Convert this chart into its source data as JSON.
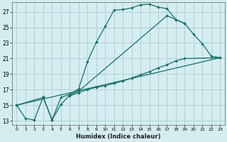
{
  "xlabel": "Humidex (Indice chaleur)",
  "background_color": "#d4edf0",
  "grid_color": "#b0d0d8",
  "line_color": "#1a6e68",
  "xlim": [
    -0.5,
    23.5
  ],
  "ylim": [
    12.5,
    28.2
  ],
  "xticks": [
    0,
    1,
    2,
    3,
    4,
    5,
    6,
    7,
    8,
    9,
    10,
    11,
    12,
    13,
    14,
    15,
    16,
    17,
    18,
    19,
    20,
    21,
    22,
    23
  ],
  "yticks": [
    13,
    15,
    17,
    19,
    21,
    23,
    25,
    27
  ],
  "curve1_x": [
    0,
    1,
    2,
    3,
    4,
    5,
    6,
    7,
    8,
    9,
    10,
    11,
    12,
    13,
    14,
    15,
    16,
    17,
    18,
    19
  ],
  "curve1_y": [
    15.0,
    13.3,
    13.1,
    16.1,
    13.1,
    16.0,
    16.4,
    17.1,
    20.6,
    23.1,
    25.1,
    27.2,
    27.3,
    27.5,
    27.9,
    28.0,
    27.6,
    27.4,
    26.0,
    25.5
  ],
  "curve2_x": [
    0,
    3,
    4,
    5,
    6,
    7,
    17,
    18,
    19,
    20,
    21,
    22,
    23
  ],
  "curve2_y": [
    15.0,
    16.0,
    13.1,
    15.1,
    16.3,
    16.8,
    26.5,
    26.0,
    25.5,
    24.1,
    22.9,
    21.3,
    21.1
  ],
  "curve3_x": [
    0,
    23
  ],
  "curve3_y": [
    15.0,
    21.1
  ],
  "curve4_x": [
    6,
    7,
    8,
    9,
    10,
    11,
    12,
    13,
    14,
    15,
    16,
    17,
    18,
    19,
    23
  ],
  "curve4_y": [
    16.2,
    16.6,
    17.0,
    17.3,
    17.5,
    17.8,
    18.1,
    18.5,
    18.9,
    19.3,
    19.8,
    20.2,
    20.7,
    21.0,
    21.1
  ]
}
